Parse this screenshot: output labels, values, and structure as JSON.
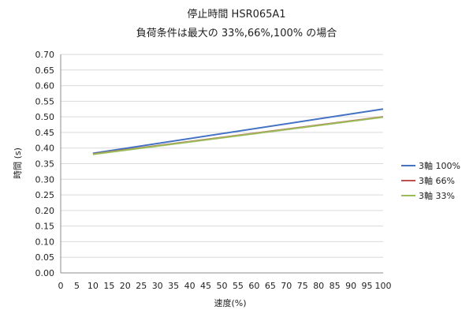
{
  "chart_data": {
    "type": "line",
    "title": "停止時間 HSR065A1",
    "subtitle": "負荷条件は最大の 33%,66%,100% の場合",
    "xlabel": "速度(%)",
    "ylabel": "時間 (s)",
    "xlim": [
      0,
      100
    ],
    "ylim": [
      0,
      0.7
    ],
    "x_ticks": [
      "0",
      "5",
      "10",
      "15",
      "20",
      "25",
      "30",
      "35",
      "40",
      "45",
      "50",
      "55",
      "60",
      "65",
      "70",
      "75",
      "80",
      "85",
      "90",
      "95",
      "100"
    ],
    "y_ticks": [
      "0.00",
      "0.05",
      "0.10",
      "0.15",
      "0.20",
      "0.25",
      "0.30",
      "0.35",
      "0.40",
      "0.45",
      "0.50",
      "0.55",
      "0.60",
      "0.65",
      "0.70"
    ],
    "grid": "horizontal",
    "legend_position": "right",
    "series": [
      {
        "name": "3軸 100%",
        "color": "#4472C4",
        "x": [
          10,
          100
        ],
        "y": [
          0.383,
          0.525
        ]
      },
      {
        "name": "3軸 66%",
        "color": "#C0504D",
        "x": [
          10,
          100
        ],
        "y": [
          0.381,
          0.5
        ]
      },
      {
        "name": "3軸 33%",
        "color": "#9BBB59",
        "x": [
          10,
          100
        ],
        "y": [
          0.38,
          0.499
        ]
      }
    ]
  }
}
